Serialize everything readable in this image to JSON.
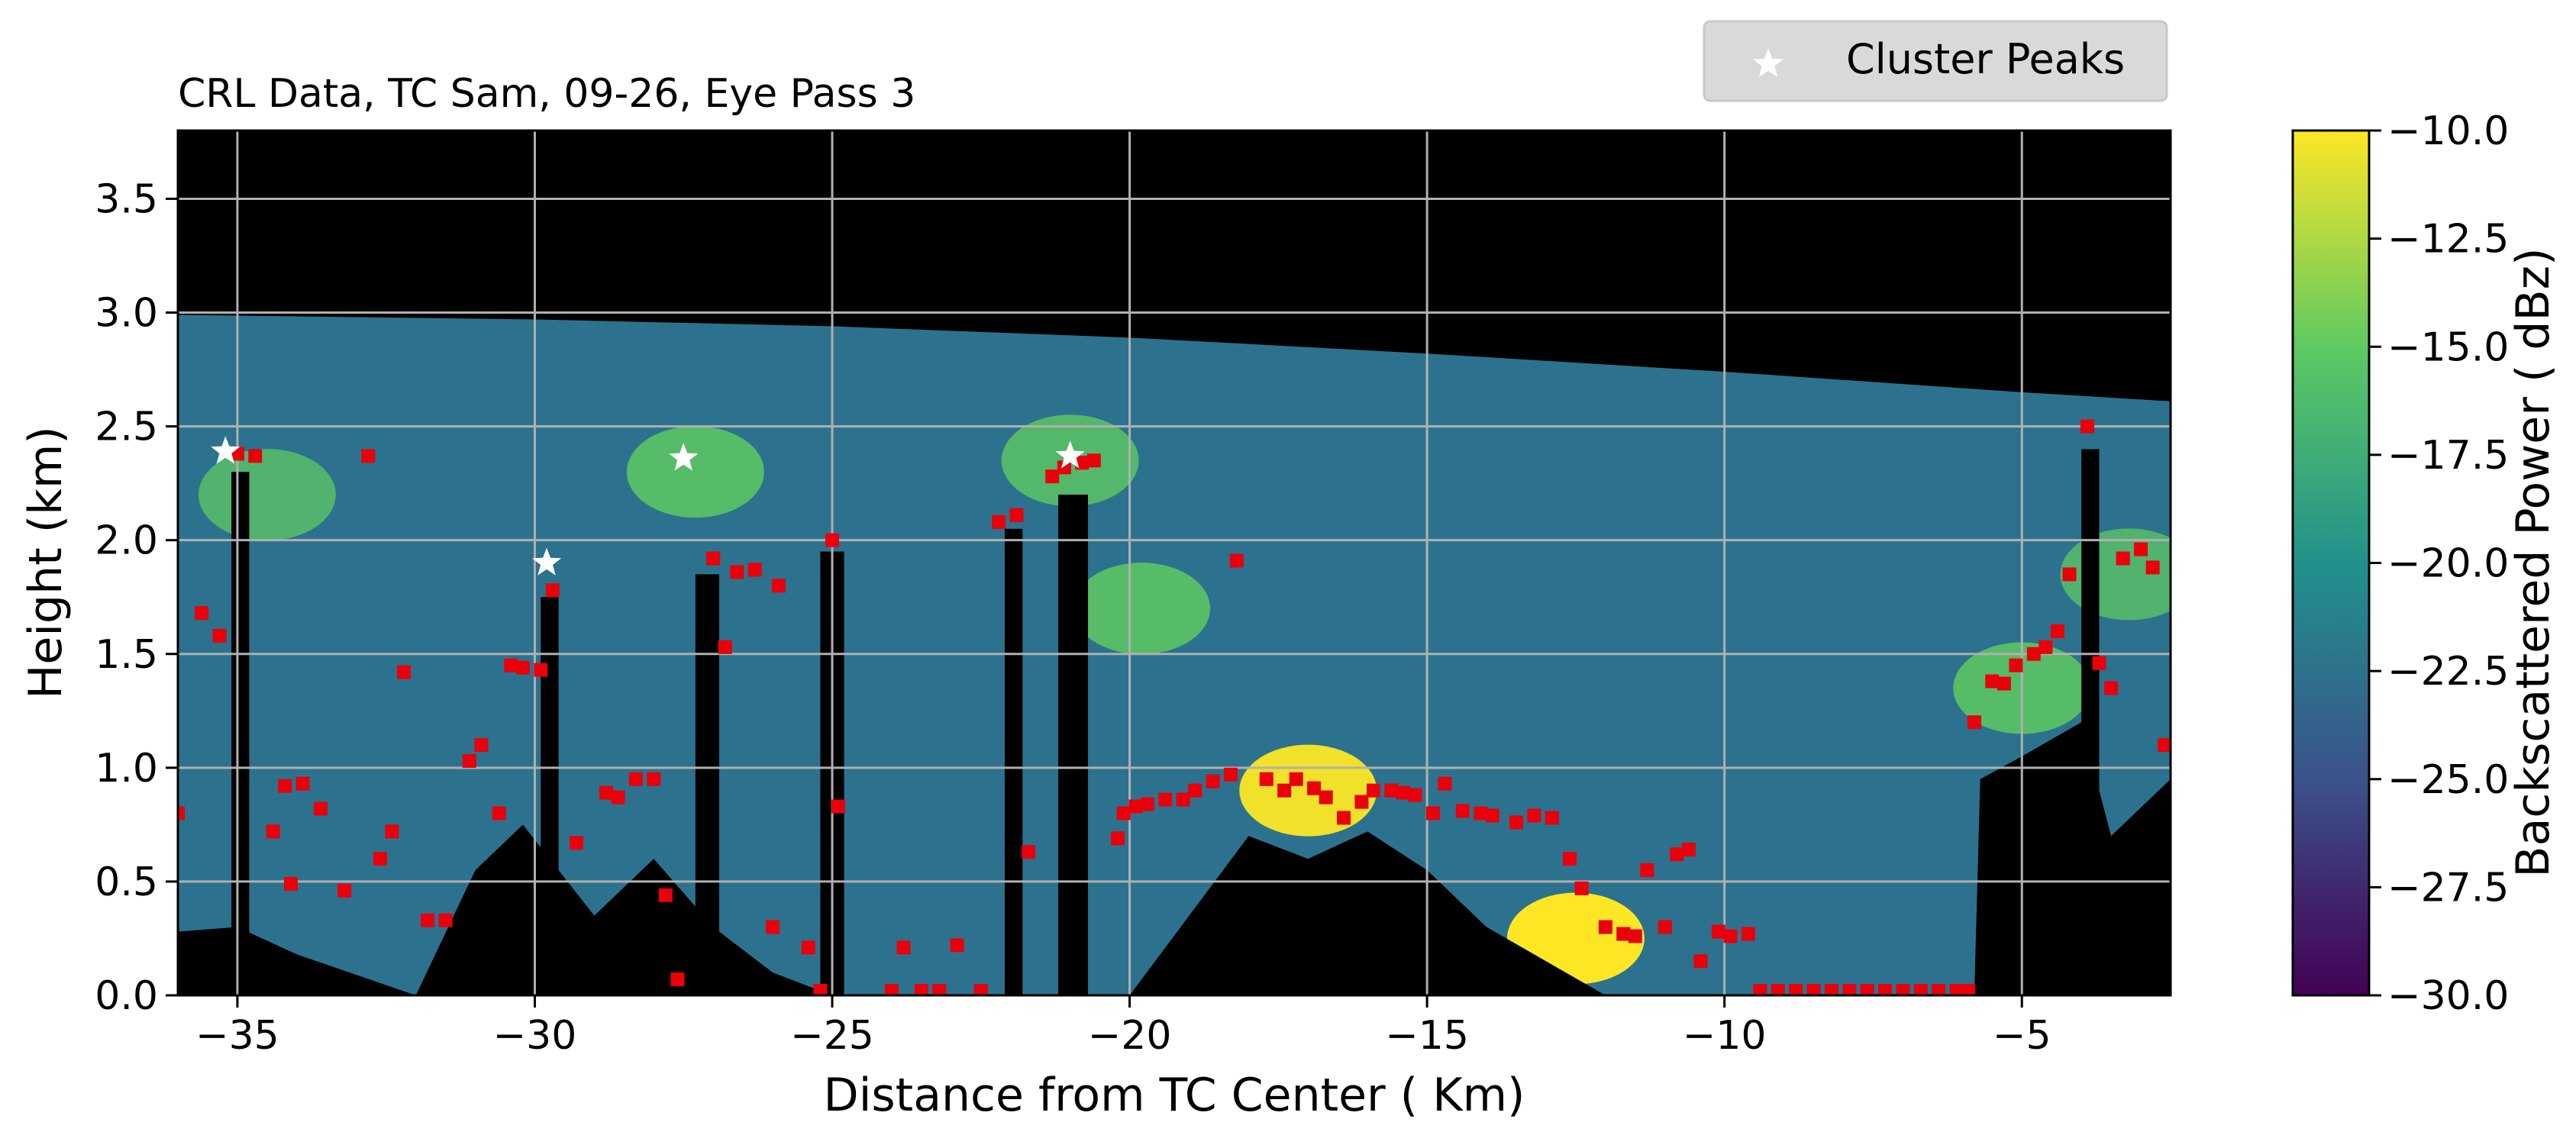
{
  "chart_data": {
    "type": "heatmap",
    "title": "CRL Data, TC Sam, 09-26, Eye Pass 3",
    "xlabel": "Distance from TC Center ( Km)",
    "ylabel": "Height (km)",
    "xlim": [
      -36.0,
      -2.5
    ],
    "ylim": [
      0.0,
      3.8
    ],
    "x_ticks": [
      -35,
      -30,
      -25,
      -20,
      -15,
      -10,
      -5
    ],
    "x_tick_labels": [
      "−35",
      "−30",
      "−25",
      "−20",
      "−15",
      "−10",
      "−5"
    ],
    "y_ticks": [
      0.0,
      0.5,
      1.0,
      1.5,
      2.0,
      2.5,
      3.0,
      3.5
    ],
    "y_tick_labels": [
      "0.0",
      "0.5",
      "1.0",
      "1.5",
      "2.0",
      "2.5",
      "3.0",
      "3.5"
    ],
    "grid": true,
    "colormap": "viridis",
    "colors": {
      "viridis": [
        "#440154",
        "#3b528b",
        "#21918c",
        "#5ec962",
        "#fde725"
      ],
      "no_data": "#000000",
      "grid": "#b0b0b0",
      "layer_top_marker": "#e8000b",
      "cluster_peak": "#ffffff",
      "legend_bg": "#d9d9d9"
    },
    "colorbar": {
      "label": "Backscattered Power ( dBz)",
      "range": [
        -30.0,
        -10.0
      ],
      "ticks": [
        -10.0,
        -12.5,
        -15.0,
        -17.5,
        -20.0,
        -22.5,
        -25.0,
        -27.5,
        -30.0
      ],
      "tick_labels": [
        "−10.0",
        "−12.5",
        "−15.0",
        "−17.5",
        "−20.0",
        "−22.5",
        "−25.0",
        "−27.5",
        "−30.0"
      ]
    },
    "legend": {
      "placement": "top-right, above plot",
      "entries": [
        {
          "label": "Cluster Peaks",
          "marker": "star",
          "color": "#ffffff"
        }
      ]
    },
    "data_top_height": [
      [
        -36.0,
        2.99
      ],
      [
        -30.0,
        2.97
      ],
      [
        -25.0,
        2.94
      ],
      [
        -20.0,
        2.89
      ],
      [
        -15.0,
        2.82
      ],
      [
        -10.0,
        2.74
      ],
      [
        -5.0,
        2.65
      ],
      [
        -2.5,
        2.61
      ]
    ],
    "ground_profile": [
      [
        -36.0,
        0.28
      ],
      [
        -35.0,
        0.3
      ],
      [
        -34.0,
        0.18
      ],
      [
        -32.0,
        0.0
      ],
      [
        -31.0,
        0.55
      ],
      [
        -30.2,
        0.75
      ],
      [
        -29.0,
        0.35
      ],
      [
        -28.0,
        0.6
      ],
      [
        -27.0,
        0.3
      ],
      [
        -26.0,
        0.1
      ],
      [
        -25.0,
        0.0
      ],
      [
        -24.0,
        0.0
      ],
      [
        -22.0,
        0.0
      ],
      [
        -20.0,
        0.0
      ],
      [
        -19.0,
        0.35
      ],
      [
        -18.0,
        0.7
      ],
      [
        -17.0,
        0.6
      ],
      [
        -16.0,
        0.72
      ],
      [
        -15.0,
        0.55
      ],
      [
        -14.0,
        0.3
      ],
      [
        -12.0,
        0.0
      ],
      [
        -10.0,
        0.0
      ],
      [
        -5.8,
        0.0
      ],
      [
        -5.7,
        0.95
      ],
      [
        -5.0,
        1.05
      ],
      [
        -4.0,
        1.2
      ],
      [
        -3.5,
        0.7
      ],
      [
        -2.5,
        0.95
      ]
    ],
    "dark_columns": [
      {
        "x": [
          -35.1,
          -34.8
        ],
        "y": [
          0.0,
          2.3
        ]
      },
      {
        "x": [
          -29.9,
          -29.6
        ],
        "y": [
          0.0,
          1.75
        ]
      },
      {
        "x": [
          -27.3,
          -26.9
        ],
        "y": [
          0.0,
          1.85
        ]
      },
      {
        "x": [
          -25.2,
          -24.8
        ],
        "y": [
          0.0,
          1.95
        ]
      },
      {
        "x": [
          -22.1,
          -21.8
        ],
        "y": [
          0.0,
          2.05
        ]
      },
      {
        "x": [
          -21.2,
          -20.7
        ],
        "y": [
          0.0,
          2.2
        ]
      },
      {
        "x": [
          -4.0,
          -3.7
        ],
        "y": [
          0.0,
          2.4
        ]
      }
    ],
    "bright_cloud": [
      {
        "x": -34.5,
        "y": 2.2,
        "intensity": 0.75
      },
      {
        "x": -27.3,
        "y": 2.3,
        "intensity": 0.85
      },
      {
        "x": -21.0,
        "y": 2.35,
        "intensity": 0.8
      },
      {
        "x": -19.8,
        "y": 1.7,
        "intensity": 0.85
      },
      {
        "x": -17.0,
        "y": 0.9,
        "intensity": 0.95
      },
      {
        "x": -12.5,
        "y": 0.25,
        "intensity": 1.0
      },
      {
        "x": -5.0,
        "y": 1.35,
        "intensity": 0.85
      },
      {
        "x": -3.2,
        "y": 1.85,
        "intensity": 0.75
      }
    ],
    "layer_top_markers": [
      [
        -36.0,
        0.8
      ],
      [
        -35.0,
        2.38
      ],
      [
        -34.7,
        2.37
      ],
      [
        -35.3,
        1.58
      ],
      [
        -35.6,
        1.68
      ],
      [
        -34.2,
        0.92
      ],
      [
        -33.9,
        0.93
      ],
      [
        -33.6,
        0.82
      ],
      [
        -34.4,
        0.72
      ],
      [
        -34.1,
        0.49
      ],
      [
        -33.2,
        0.46
      ],
      [
        -32.8,
        2.37
      ],
      [
        -32.6,
        0.6
      ],
      [
        -32.4,
        0.72
      ],
      [
        -32.2,
        1.42
      ],
      [
        -31.8,
        0.33
      ],
      [
        -31.5,
        0.33
      ],
      [
        -31.1,
        1.03
      ],
      [
        -30.9,
        1.1
      ],
      [
        -30.6,
        0.8
      ],
      [
        -30.4,
        1.45
      ],
      [
        -30.2,
        1.44
      ],
      [
        -29.9,
        1.43
      ],
      [
        -29.7,
        1.78
      ],
      [
        -29.3,
        0.67
      ],
      [
        -28.8,
        0.89
      ],
      [
        -28.6,
        0.87
      ],
      [
        -28.3,
        0.95
      ],
      [
        -28.0,
        0.95
      ],
      [
        -27.8,
        0.44
      ],
      [
        -27.6,
        0.07
      ],
      [
        -27.0,
        1.92
      ],
      [
        -26.8,
        1.53
      ],
      [
        -26.6,
        1.86
      ],
      [
        -26.3,
        1.87
      ],
      [
        -26.0,
        0.3
      ],
      [
        -25.9,
        1.8
      ],
      [
        -25.4,
        0.21
      ],
      [
        -25.2,
        0.02
      ],
      [
        -25.0,
        2.0
      ],
      [
        -24.9,
        0.83
      ],
      [
        -24.0,
        0.02
      ],
      [
        -23.8,
        0.21
      ],
      [
        -23.5,
        0.02
      ],
      [
        -23.2,
        0.02
      ],
      [
        -22.9,
        0.22
      ],
      [
        -22.5,
        0.02
      ],
      [
        -22.2,
        2.08
      ],
      [
        -21.9,
        2.11
      ],
      [
        -21.7,
        0.63
      ],
      [
        -21.3,
        2.28
      ],
      [
        -21.1,
        2.32
      ],
      [
        -20.8,
        2.34
      ],
      [
        -20.6,
        2.35
      ],
      [
        -20.2,
        0.69
      ],
      [
        -20.1,
        0.8
      ],
      [
        -19.9,
        0.83
      ],
      [
        -19.7,
        0.84
      ],
      [
        -19.4,
        0.86
      ],
      [
        -19.1,
        0.86
      ],
      [
        -18.9,
        0.9
      ],
      [
        -18.6,
        0.94
      ],
      [
        -18.2,
        1.91
      ],
      [
        -18.3,
        0.97
      ],
      [
        -17.7,
        0.95
      ],
      [
        -17.4,
        0.9
      ],
      [
        -17.2,
        0.95
      ],
      [
        -16.9,
        0.91
      ],
      [
        -16.7,
        0.87
      ],
      [
        -16.4,
        0.78
      ],
      [
        -16.1,
        0.85
      ],
      [
        -15.9,
        0.9
      ],
      [
        -15.6,
        0.9
      ],
      [
        -15.4,
        0.89
      ],
      [
        -15.2,
        0.88
      ],
      [
        -14.9,
        0.8
      ],
      [
        -14.7,
        0.93
      ],
      [
        -14.4,
        0.81
      ],
      [
        -14.1,
        0.8
      ],
      [
        -13.9,
        0.79
      ],
      [
        -13.5,
        0.76
      ],
      [
        -13.2,
        0.79
      ],
      [
        -12.9,
        0.78
      ],
      [
        -12.6,
        0.6
      ],
      [
        -12.4,
        0.47
      ],
      [
        -12.0,
        0.3
      ],
      [
        -11.7,
        0.27
      ],
      [
        -11.5,
        0.26
      ],
      [
        -11.3,
        0.55
      ],
      [
        -11.0,
        0.3
      ],
      [
        -10.8,
        0.62
      ],
      [
        -10.6,
        0.64
      ],
      [
        -10.4,
        0.15
      ],
      [
        -10.1,
        0.28
      ],
      [
        -9.9,
        0.26
      ],
      [
        -9.6,
        0.27
      ],
      [
        -9.4,
        0.02
      ],
      [
        -9.1,
        0.02
      ],
      [
        -8.8,
        0.02
      ],
      [
        -8.5,
        0.02
      ],
      [
        -8.2,
        0.02
      ],
      [
        -7.9,
        0.02
      ],
      [
        -7.6,
        0.02
      ],
      [
        -7.3,
        0.02
      ],
      [
        -7.0,
        0.02
      ],
      [
        -6.7,
        0.02
      ],
      [
        -6.4,
        0.02
      ],
      [
        -6.1,
        0.02
      ],
      [
        -5.9,
        0.02
      ],
      [
        -5.8,
        1.2
      ],
      [
        -5.5,
        1.38
      ],
      [
        -5.3,
        1.37
      ],
      [
        -5.1,
        1.45
      ],
      [
        -4.8,
        1.5
      ],
      [
        -4.6,
        1.53
      ],
      [
        -4.4,
        1.6
      ],
      [
        -4.2,
        1.85
      ],
      [
        -3.9,
        2.5
      ],
      [
        -3.7,
        1.46
      ],
      [
        -3.5,
        1.35
      ],
      [
        -3.3,
        1.92
      ],
      [
        -3.0,
        1.96
      ],
      [
        -2.8,
        1.88
      ],
      [
        -2.6,
        1.1
      ]
    ],
    "cluster_peaks": [
      [
        -35.2,
        2.39
      ],
      [
        -27.5,
        2.36
      ],
      [
        -29.8,
        1.9
      ],
      [
        -21.0,
        2.37
      ]
    ]
  }
}
